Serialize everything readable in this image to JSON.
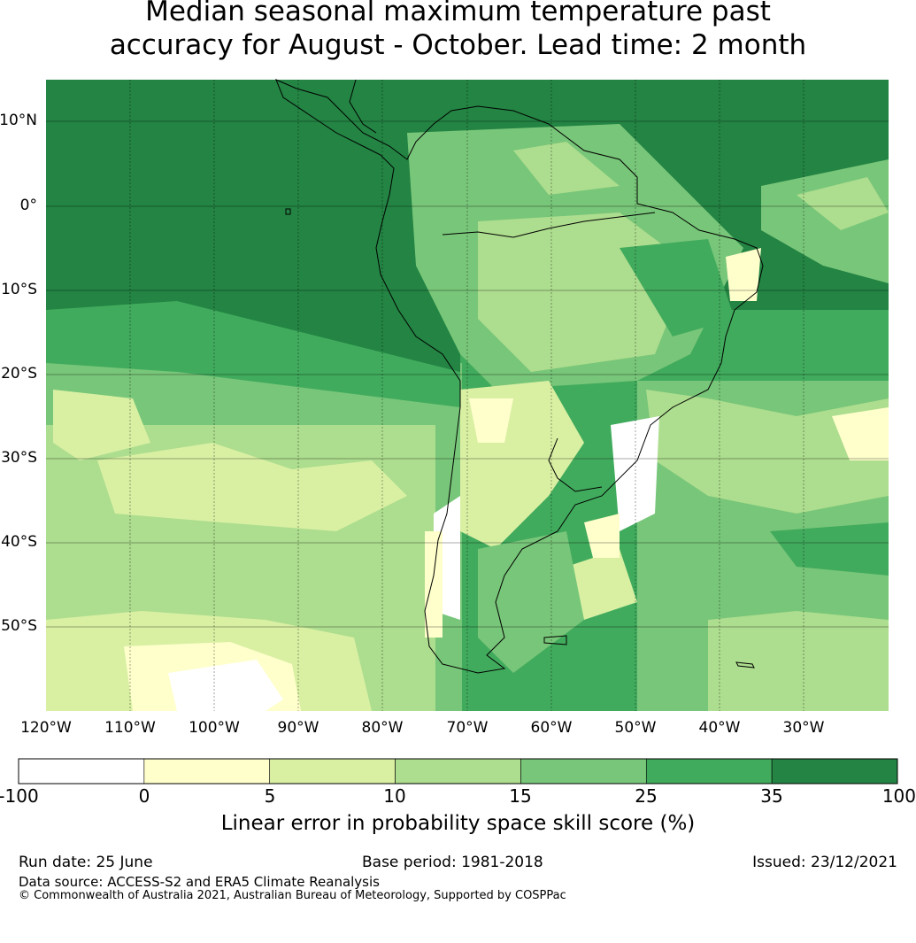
{
  "title_line1": "Median seasonal maximum temperature past",
  "title_line2": "accuracy for August - October. Lead time: 2 month",
  "lat_labels": [
    "10°N",
    "0°",
    "10°S",
    "20°S",
    "30°S",
    "40°S",
    "50°S"
  ],
  "lon_labels": [
    "120°W",
    "110°W",
    "100°W",
    "90°W",
    "80°W",
    "70°W",
    "60°W",
    "50°W",
    "40°W",
    "30°W"
  ],
  "colorbar": {
    "ticks": [
      "-100",
      "0",
      "5",
      "10",
      "15",
      "25",
      "35",
      "100"
    ],
    "colors": [
      "#ffffff",
      "#ffffcc",
      "#d9f0a3",
      "#addd8e",
      "#78c679",
      "#41ab5d",
      "#238443"
    ],
    "caption": "Linear error in probability space skill score (%)"
  },
  "footer": {
    "run_date": "Run date: 25 June",
    "base_period": "Base period: 1981-2018",
    "issued": "Issued: 23/12/2021",
    "data_source": "Data source: ACCESS-S2 and ERA5 Climate Reanalysis",
    "copyright": "© Commonwealth of Australia 2021, Australian Bureau of Meteorology, Supported by COSPPac"
  }
}
